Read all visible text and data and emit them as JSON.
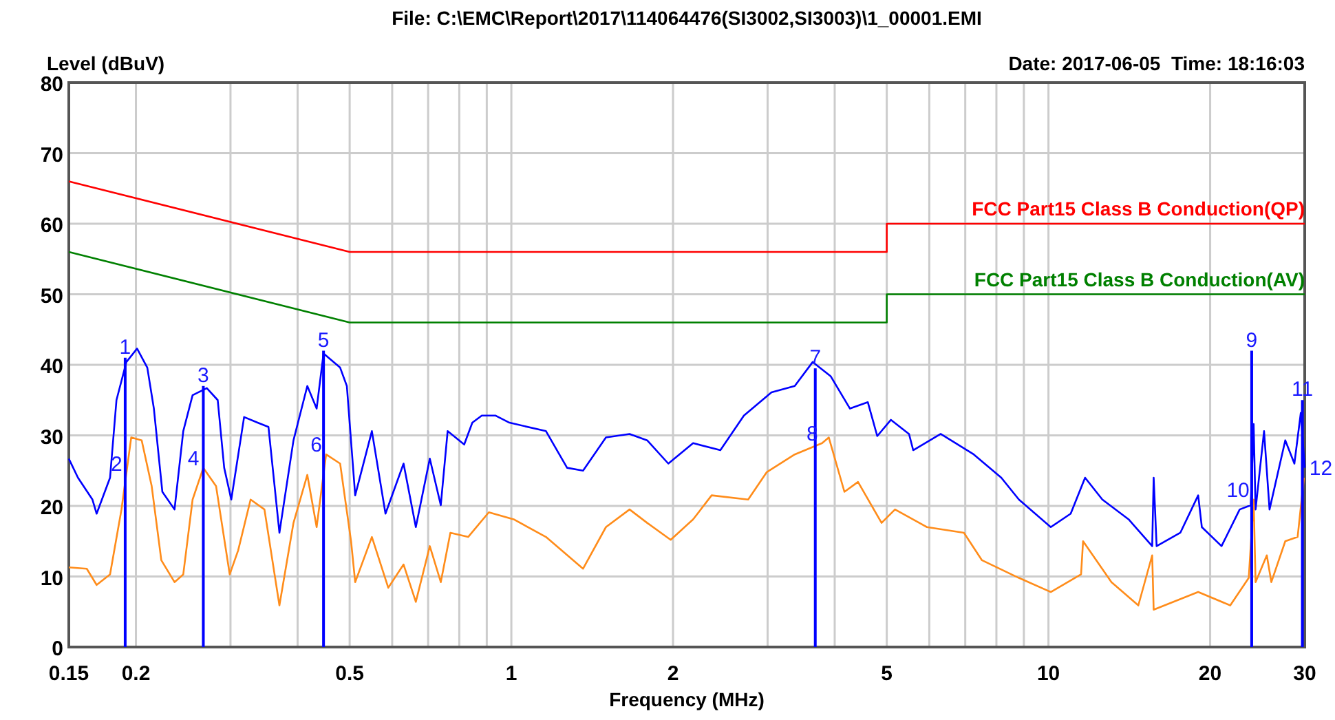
{
  "chart_data": {
    "type": "line",
    "title": "File: C:\\EMC\\Report\\2017\\114064476(SI3002,SI3003)\\1_00001.EMI",
    "subtitle": "Date: 2017-06-05  Time: 18:16:03",
    "xlabel": "Frequency (MHz)",
    "ylabel": "Level (dBuV)",
    "log": "x",
    "grid": true,
    "xlim": [
      0.15,
      30
    ],
    "ylim": [
      0,
      80
    ],
    "xticks": [
      0.15,
      0.2,
      {
        "value": 0.3,
        "label": null
      },
      {
        "value": 0.4,
        "label": null
      },
      0.5,
      {
        "value": 0.6,
        "label": null
      },
      {
        "value": 0.7,
        "label": null
      },
      {
        "value": 0.8,
        "label": null
      },
      {
        "value": 0.9,
        "label": null
      },
      1,
      2,
      {
        "value": 3,
        "label": null
      },
      {
        "value": 4,
        "label": null
      },
      5,
      {
        "value": 6,
        "label": null
      },
      {
        "value": 7,
        "label": null
      },
      {
        "value": 8,
        "label": null
      },
      {
        "value": 9,
        "label": null
      },
      10,
      20,
      30
    ],
    "yticks": [
      0,
      10,
      20,
      30,
      40,
      50,
      60,
      70,
      80
    ],
    "series": [
      {
        "name": "FCC Part15 Class B Conduction(QP)",
        "color": "#ff0000",
        "x": [
          0.15,
          0.5,
          5,
          5,
          30
        ],
        "values": [
          66,
          56,
          56,
          60,
          60
        ]
      },
      {
        "name": "FCC Part15 Class B Conduction(AV)",
        "color": "#008000",
        "x": [
          0.15,
          0.5,
          5,
          5,
          30
        ],
        "values": [
          56,
          46,
          46,
          50,
          50
        ]
      },
      {
        "color": "#0000ff",
        "x": [
          0.15,
          0.156,
          0.166,
          0.169,
          0.179,
          0.184,
          0.192,
          0.201,
          0.21,
          0.216,
          0.224,
          0.236,
          0.245,
          0.255,
          0.271,
          0.284,
          0.292,
          0.301,
          0.318,
          0.337,
          0.353,
          0.37,
          0.393,
          0.417,
          0.434,
          0.447,
          0.48,
          0.494,
          0.512,
          0.55,
          0.583,
          0.63,
          0.664,
          0.705,
          0.739,
          0.761,
          0.817,
          0.846,
          0.881,
          0.935,
          0.992,
          1.16,
          1.27,
          1.36,
          1.5,
          1.66,
          1.79,
          1.96,
          2.18,
          2.45,
          2.71,
          3.05,
          3.37,
          3.64,
          3.93,
          4.27,
          4.61,
          4.8,
          5.09,
          5.5,
          5.6,
          6.3,
          7.26,
          8.17,
          8.81,
          10.1,
          11,
          11.7,
          12.6,
          14.1,
          15.6,
          15.7,
          15.9,
          17.6,
          19,
          19.3,
          21,
          22.7,
          23.8,
          24.1,
          24.3,
          25.2,
          25.8,
          27.6,
          28.7,
          29.5,
          30
        ],
        "values": [
          26.7,
          24,
          20.9,
          18.9,
          24,
          35,
          40.4,
          42.3,
          39.6,
          33.8,
          22,
          19.5,
          30.6,
          35.7,
          36.7,
          35,
          25.4,
          20.9,
          32.6,
          31.8,
          31.2,
          16.2,
          29.3,
          37,
          33.8,
          41.6,
          39.6,
          37,
          21.5,
          30.6,
          18.9,
          26,
          17,
          26.7,
          20.1,
          30.6,
          28.7,
          31.8,
          32.8,
          32.8,
          31.8,
          30.6,
          25.4,
          25,
          29.7,
          30.2,
          29.3,
          26,
          28.9,
          27.9,
          32.8,
          36.1,
          37,
          40.4,
          38.4,
          33.8,
          34.7,
          29.9,
          32.2,
          30.2,
          27.9,
          30.2,
          27.3,
          24,
          20.9,
          17,
          18.9,
          24,
          20.9,
          18.1,
          14.3,
          24,
          14.3,
          16.2,
          21.5,
          17,
          14.3,
          19.5,
          20.1,
          31.6,
          19.5,
          30.6,
          19.5,
          29.3,
          26,
          33.2,
          25.4
        ]
      },
      {
        "color": "#ff8c1a",
        "x": [
          0.15,
          0.162,
          0.169,
          0.179,
          0.188,
          0.196,
          0.205,
          0.214,
          0.223,
          0.236,
          0.245,
          0.255,
          0.267,
          0.282,
          0.299,
          0.31,
          0.327,
          0.347,
          0.37,
          0.393,
          0.417,
          0.434,
          0.452,
          0.48,
          0.503,
          0.512,
          0.55,
          0.59,
          0.63,
          0.664,
          0.705,
          0.739,
          0.77,
          0.831,
          0.908,
          1.01,
          1.16,
          1.36,
          1.5,
          1.66,
          1.79,
          1.98,
          2.18,
          2.36,
          2.76,
          2.99,
          3.37,
          3.79,
          3.9,
          4.17,
          4.42,
          4.89,
          5.18,
          5.94,
          6.96,
          7.52,
          8.81,
          10.1,
          11.5,
          11.6,
          13.1,
          14.7,
          15.6,
          15.7,
          19,
          21.8,
          23.6,
          24.1,
          24.3,
          25.5,
          26,
          27.6,
          29.1,
          29.9
        ],
        "values": [
          11.3,
          11.1,
          8.8,
          10.3,
          19.5,
          29.7,
          29.3,
          22.8,
          12.3,
          9.2,
          10.3,
          20.9,
          25.4,
          22.8,
          10.3,
          13.7,
          20.9,
          19.5,
          5.9,
          17.6,
          24.4,
          17,
          27.3,
          26,
          15,
          9.2,
          15.6,
          8.4,
          11.7,
          6.4,
          14.3,
          9.2,
          16.2,
          15.6,
          19.1,
          18.1,
          15.6,
          11.1,
          17,
          19.5,
          17.6,
          15.2,
          18.1,
          21.5,
          20.9,
          24.8,
          27.3,
          28.9,
          29.7,
          22,
          23.4,
          17.6,
          19.5,
          17,
          16.2,
          12.3,
          9.8,
          7.8,
          10.3,
          15,
          9.2,
          5.9,
          13,
          5.3,
          7.8,
          5.9,
          9.8,
          20.9,
          9.2,
          13,
          9.2,
          15,
          15.6,
          24
        ]
      },
      {
        "type": "bar",
        "color": "#0000ff",
        "x": [
          0.191,
          0.267,
          0.447,
          3.68,
          23.9,
          29.7
        ],
        "values": [
          41,
          37,
          42,
          39.5,
          42,
          35
        ]
      }
    ],
    "annotations": [
      {
        "text": "1",
        "x": 0.191,
        "y": 41
      },
      {
        "text": "2",
        "x": 0.192,
        "y": 24.6
      },
      {
        "text": "3",
        "x": 0.267,
        "y": 37
      },
      {
        "text": "4",
        "x": 0.267,
        "y": 25.4
      },
      {
        "text": "5",
        "x": 0.447,
        "y": 42
      },
      {
        "text": "6",
        "x": 0.452,
        "y": 27.3
      },
      {
        "text": "7",
        "x": 3.68,
        "y": 39.5
      },
      {
        "text": "8",
        "x": 3.79,
        "y": 28.9
      },
      {
        "text": "9",
        "x": 23.9,
        "y": 42
      },
      {
        "text": "10",
        "x": 24.1,
        "y": 20.9
      },
      {
        "text": "11",
        "x": 29.7,
        "y": 35
      },
      {
        "text": "12",
        "x": 29.9,
        "y": 24
      }
    ]
  }
}
